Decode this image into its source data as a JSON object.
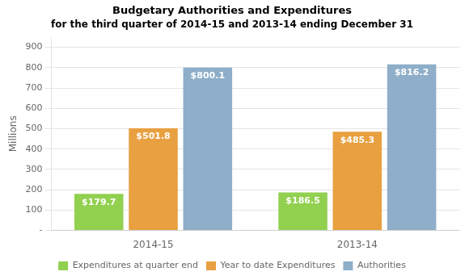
{
  "chart_data": {
    "type": "bar",
    "title": "Budgetary Authorities and Expenditures",
    "subtitle": "for the third quarter of 2014-15 and 2013-14 ending December 31",
    "y_label": "Millions",
    "categories": [
      "2014-15",
      "2013-14"
    ],
    "series": [
      {
        "name": "Expenditures at quarter end",
        "color": "#92d050",
        "values": [
          179.7,
          186.5
        ],
        "value_labels": [
          "$179.7",
          "$186.5"
        ]
      },
      {
        "name": "Year to date Expenditures",
        "color": "#e8a040",
        "values": [
          501.8,
          485.3
        ],
        "value_labels": [
          "$501.8",
          "$485.3"
        ]
      },
      {
        "name": "Authorities",
        "color": "#8eaec9",
        "values": [
          800.1,
          816.2
        ],
        "value_labels": [
          "$800.1",
          "$816.2"
        ]
      }
    ],
    "ylim": [
      0,
      950
    ],
    "yticks": [
      {
        "value": 0,
        "label": "-"
      },
      100,
      200,
      300,
      400,
      500,
      600,
      700,
      800,
      900
    ],
    "grid": true,
    "legend": "bottom",
    "data_labels": true
  }
}
